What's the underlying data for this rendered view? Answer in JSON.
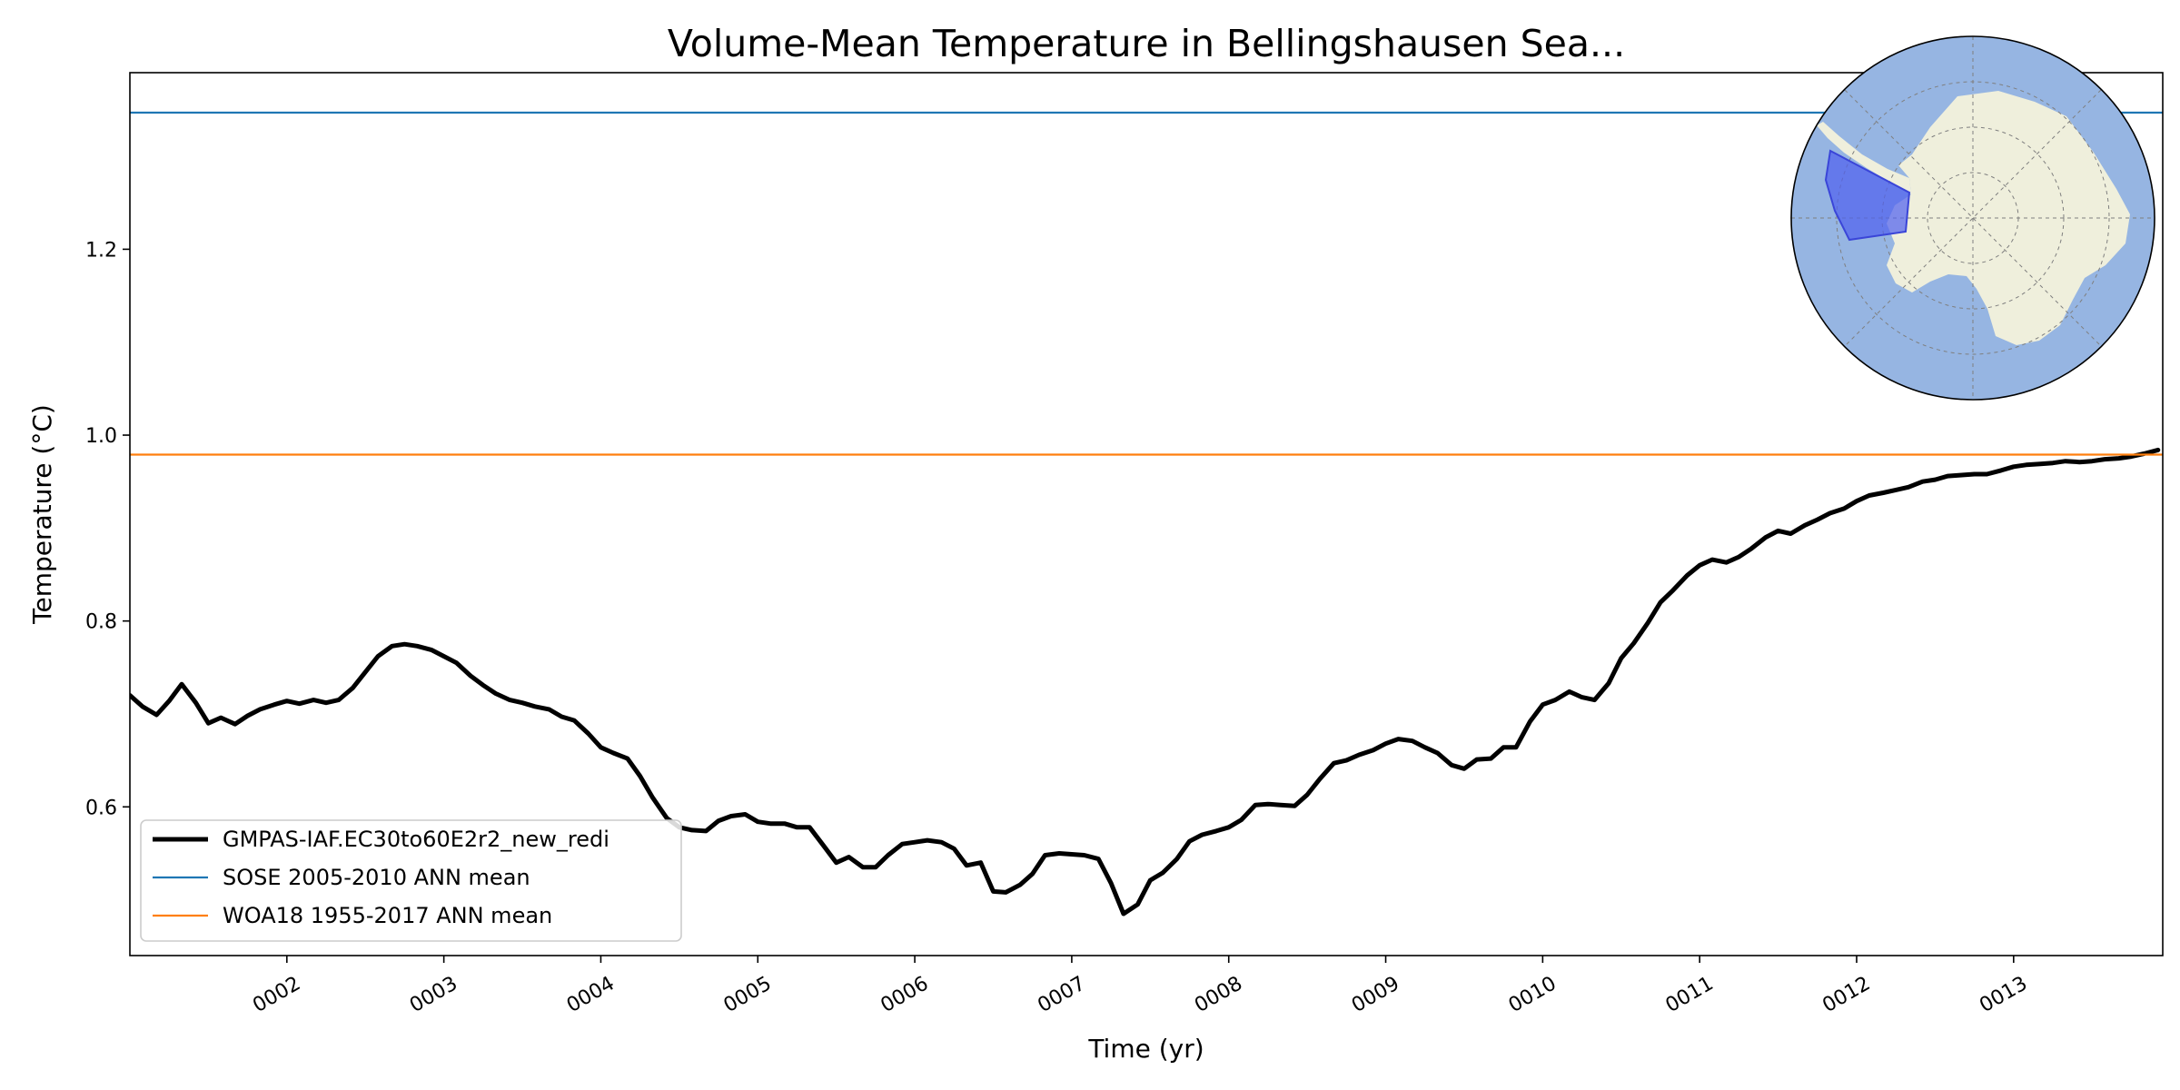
{
  "chart_data": {
    "type": "line",
    "title": "Volume-Mean Temperature in Bellingshausen Sea...",
    "xlabel": "Time (yr)",
    "ylabel": "Temperature ($^\\circ$C)",
    "ylabel_display": "Temperature (°C)",
    "xlim": [
      1.0,
      13.95
    ],
    "ylim": [
      0.44,
      1.39
    ],
    "x_ticks": [
      2,
      3,
      4,
      5,
      6,
      7,
      8,
      9,
      10,
      11,
      12,
      13
    ],
    "x_tick_labels": [
      "0002",
      "0003",
      "0004",
      "0005",
      "0006",
      "0007",
      "0008",
      "0009",
      "0010",
      "0011",
      "0012",
      "0013"
    ],
    "y_ticks": [
      0.6,
      0.8,
      1.0,
      1.2
    ],
    "y_tick_labels": [
      "0.6",
      "0.8",
      "1.0",
      "1.2"
    ],
    "grid": false,
    "legend_position": "lower-left",
    "series": [
      {
        "name": "GMPAS-IAF.EC30to60E2r2_new_redi",
        "color": "#000000",
        "style": "solid-thick",
        "x": [
          1.0,
          1.08,
          1.17,
          1.25,
          1.33,
          1.42,
          1.5,
          1.58,
          1.67,
          1.75,
          1.83,
          1.92,
          2.0,
          2.08,
          2.17,
          2.25,
          2.33,
          2.42,
          2.5,
          2.58,
          2.67,
          2.75,
          2.83,
          2.92,
          3.0,
          3.08,
          3.17,
          3.25,
          3.33,
          3.42,
          3.5,
          3.58,
          3.67,
          3.75,
          3.83,
          3.92,
          4.0,
          4.08,
          4.17,
          4.25,
          4.33,
          4.42,
          4.5,
          4.58,
          4.67,
          4.75,
          4.83,
          4.92,
          5.0,
          5.08,
          5.17,
          5.25,
          5.33,
          5.42,
          5.5,
          5.58,
          5.67,
          5.75,
          5.83,
          5.92,
          6.0,
          6.08,
          6.17,
          6.25,
          6.33,
          6.42,
          6.5,
          6.58,
          6.67,
          6.75,
          6.83,
          6.92,
          7.0,
          7.08,
          7.17,
          7.25,
          7.33,
          7.42,
          7.5,
          7.58,
          7.67,
          7.75,
          7.83,
          7.92,
          8.0,
          8.08,
          8.17,
          8.25,
          8.33,
          8.42,
          8.5,
          8.58,
          8.67,
          8.75,
          8.83,
          8.92,
          9.0,
          9.08,
          9.17,
          9.25,
          9.33,
          9.42,
          9.5,
          9.58,
          9.67,
          9.75,
          9.83,
          9.92,
          10.0,
          10.08,
          10.17,
          10.25,
          10.33,
          10.42,
          10.5,
          10.58,
          10.67,
          10.75,
          10.83,
          10.92,
          11.0,
          11.08,
          11.17,
          11.25,
          11.33,
          11.42,
          11.5,
          11.58,
          11.67,
          11.75,
          11.83,
          11.92,
          12.0,
          12.08,
          12.17,
          12.25,
          12.33,
          12.42,
          12.5,
          12.58,
          12.67,
          12.75,
          12.83,
          12.92,
          13.0,
          13.08,
          13.17,
          13.25,
          13.33,
          13.42,
          13.5,
          13.58,
          13.67,
          13.75,
          13.83,
          13.92
        ],
        "values": [
          0.72,
          0.708,
          0.699,
          0.714,
          0.732,
          0.712,
          0.69,
          0.696,
          0.689,
          0.698,
          0.705,
          0.71,
          0.714,
          0.711,
          0.715,
          0.712,
          0.715,
          0.728,
          0.745,
          0.762,
          0.773,
          0.775,
          0.773,
          0.769,
          0.762,
          0.755,
          0.741,
          0.731,
          0.722,
          0.715,
          0.712,
          0.708,
          0.705,
          0.697,
          0.693,
          0.679,
          0.664,
          0.658,
          0.652,
          0.633,
          0.61,
          0.588,
          0.578,
          0.575,
          0.574,
          0.585,
          0.59,
          0.592,
          0.584,
          0.582,
          0.582,
          0.578,
          0.578,
          0.558,
          0.54,
          0.546,
          0.535,
          0.535,
          0.548,
          0.56,
          0.562,
          0.564,
          0.562,
          0.555,
          0.537,
          0.54,
          0.509,
          0.508,
          0.516,
          0.528,
          0.548,
          0.55,
          0.549,
          0.548,
          0.544,
          0.518,
          0.485,
          0.495,
          0.521,
          0.529,
          0.544,
          0.563,
          0.57,
          0.574,
          0.578,
          0.586,
          0.602,
          0.603,
          0.602,
          0.601,
          0.613,
          0.63,
          0.647,
          0.65,
          0.656,
          0.661,
          0.668,
          0.673,
          0.671,
          0.664,
          0.658,
          0.645,
          0.641,
          0.651,
          0.652,
          0.664,
          0.664,
          0.692,
          0.71,
          0.715,
          0.724,
          0.718,
          0.715,
          0.733,
          0.76,
          0.776,
          0.798,
          0.82,
          0.833,
          0.849,
          0.86,
          0.866,
          0.863,
          0.869,
          0.878,
          0.89,
          0.897,
          0.894,
          0.903,
          0.909,
          0.916,
          0.921,
          0.929,
          0.935,
          0.938,
          0.941,
          0.944,
          0.95,
          0.952,
          0.956,
          0.957,
          0.958,
          0.958,
          0.962,
          0.966,
          0.968,
          0.969,
          0.97,
          0.972,
          0.971,
          0.972,
          0.974,
          0.975,
          0.977,
          0.98,
          0.984
        ]
      },
      {
        "name": "SOSE 2005-2010 ANN mean",
        "color": "#1f77b4",
        "style": "hline",
        "value": 1.347
      },
      {
        "name": "WOA18 1955-2017 ANN mean",
        "color": "#ff7f0e",
        "style": "hline",
        "value": 0.979
      }
    ],
    "inset_map": {
      "projection": "south-polar-stereographic",
      "ocean_color": "#96b5e2",
      "land_color": "#efefdc",
      "region_color": "#4e5ff0",
      "region": "Bellingshausen Sea"
    }
  }
}
